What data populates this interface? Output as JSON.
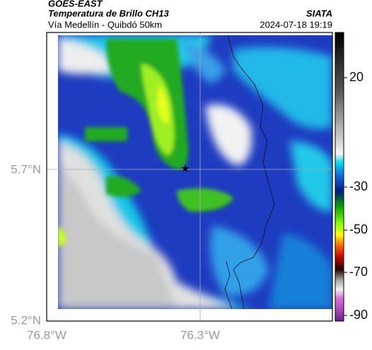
{
  "header": {
    "source": "GOES-EAST",
    "product": "Temperatura de Brillo CH13",
    "region": "Vía Medellín - Quibdó 50km",
    "agency": "SIATA",
    "datetime": "2024-07-18 19:19"
  },
  "axes": {
    "lat_labels": [
      "5.7°N",
      "5.2°N"
    ],
    "lon_labels": [
      "76.8°W",
      "76.3°W"
    ]
  },
  "colorbar": {
    "ticks": [
      20,
      -30,
      -50,
      -70,
      -90
    ]
  }
}
